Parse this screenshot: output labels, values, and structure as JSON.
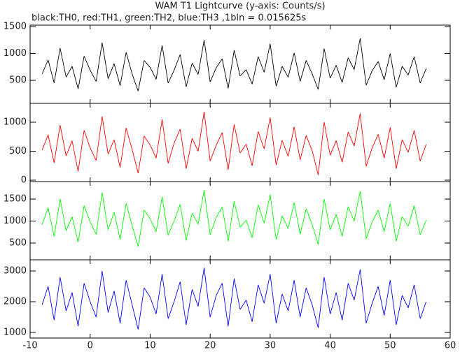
{
  "chart_data": [
    {
      "type": "line",
      "title": "WAM T1 Lightcurve (y-axis: Counts/s)",
      "subtitle": "black:TH0, red:TH1, green:TH2, blue:TH3 ,1bin = 0.015625s",
      "color": "#000000",
      "xlim": [
        -10,
        60
      ],
      "ylim": [
        72,
        1526
      ],
      "yticks": [
        500,
        1000,
        1500
      ],
      "x": [
        -8,
        -7,
        -6,
        -5,
        -4,
        -3,
        -2,
        -1,
        0,
        1,
        2,
        3,
        4,
        5,
        6,
        7,
        8,
        9,
        10,
        11,
        12,
        13,
        14,
        15,
        16,
        17,
        18,
        19,
        20,
        21,
        22,
        23,
        24,
        25,
        26,
        27,
        28,
        29,
        30,
        31,
        32,
        33,
        34,
        35,
        36,
        37,
        38,
        39,
        40,
        41,
        42,
        43,
        44,
        45,
        46,
        47,
        48,
        49,
        50,
        51,
        52,
        53,
        54,
        55,
        56
      ],
      "values": [
        620,
        880,
        450,
        1100,
        560,
        760,
        340,
        950,
        690,
        480,
        1200,
        530,
        810,
        400,
        1020,
        620,
        300,
        870,
        740,
        520,
        1150,
        450,
        690,
        980,
        380,
        820,
        610,
        1250,
        470,
        730,
        900,
        350,
        1060,
        580,
        700,
        430,
        940,
        650,
        1180,
        390,
        760,
        560,
        1010,
        480,
        870,
        620,
        330,
        1090,
        540,
        780,
        460,
        920,
        700,
        1280,
        410,
        680,
        850,
        510,
        1000,
        370,
        760,
        600,
        940,
        450,
        720
      ]
    },
    {
      "type": "line",
      "color": "#ff0000",
      "xlim": [
        -10,
        60
      ],
      "ylim": [
        -24,
        1325
      ],
      "yticks": [
        0,
        500,
        1000
      ],
      "x": [
        -8,
        -7,
        -6,
        -5,
        -4,
        -3,
        -2,
        -1,
        0,
        1,
        2,
        3,
        4,
        5,
        6,
        7,
        8,
        9,
        10,
        11,
        12,
        13,
        14,
        15,
        16,
        17,
        18,
        19,
        20,
        21,
        22,
        23,
        24,
        25,
        26,
        27,
        28,
        29,
        30,
        31,
        32,
        33,
        34,
        35,
        36,
        37,
        38,
        39,
        40,
        41,
        42,
        43,
        44,
        45,
        46,
        47,
        48,
        49,
        50,
        51,
        52,
        53,
        54,
        55,
        56
      ],
      "values": [
        520,
        780,
        300,
        950,
        420,
        680,
        150,
        860,
        560,
        340,
        1100,
        450,
        700,
        220,
        900,
        530,
        120,
        760,
        610,
        380,
        1050,
        290,
        640,
        880,
        200,
        720,
        500,
        1180,
        330,
        600,
        820,
        180,
        960,
        470,
        620,
        250,
        840,
        540,
        1080,
        260,
        690,
        410,
        920,
        350,
        770,
        510,
        90,
        1000,
        430,
        680,
        310,
        830,
        590,
        1150,
        240,
        560,
        790,
        380,
        910,
        200,
        700,
        480,
        860,
        330,
        620
      ]
    },
    {
      "type": "line",
      "color": "#00ff00",
      "xlim": [
        -10,
        60
      ],
      "ylim": [
        119,
        1897
      ],
      "yticks": [
        500,
        1000,
        1500
      ],
      "x": [
        -8,
        -7,
        -6,
        -5,
        -4,
        -3,
        -2,
        -1,
        0,
        1,
        2,
        3,
        4,
        5,
        6,
        7,
        8,
        9,
        10,
        11,
        12,
        13,
        14,
        15,
        16,
        17,
        18,
        19,
        20,
        21,
        22,
        23,
        24,
        25,
        26,
        27,
        28,
        29,
        30,
        31,
        32,
        33,
        34,
        35,
        36,
        37,
        38,
        39,
        40,
        41,
        42,
        43,
        44,
        45,
        46,
        47,
        48,
        49,
        50,
        51,
        52,
        53,
        54,
        55,
        56
      ],
      "values": [
        920,
        1300,
        650,
        1500,
        780,
        1100,
        520,
        1350,
        980,
        700,
        1650,
        800,
        1200,
        580,
        1400,
        900,
        420,
        1250,
        1050,
        760,
        1550,
        680,
        1000,
        1380,
        560,
        1180,
        930,
        1700,
        690,
        1080,
        1320,
        540,
        1450,
        860,
        1020,
        620,
        1370,
        950,
        1600,
        580,
        1120,
        830,
        1420,
        700,
        1280,
        920,
        470,
        1500,
        800,
        1150,
        650,
        1330,
        1000,
        1680,
        600,
        980,
        1250,
        760,
        1400,
        540,
        1100,
        880,
        1350,
        690,
        1020
      ]
    },
    {
      "type": "line",
      "color": "#0000ff",
      "xlim": [
        -10,
        60
      ],
      "ylim": [
        818,
        3364
      ],
      "yticks": [
        1000,
        2000,
        3000
      ],
      "xticks": [
        -10,
        0,
        10,
        20,
        30,
        40,
        50,
        60
      ],
      "x": [
        -8,
        -7,
        -6,
        -5,
        -4,
        -3,
        -2,
        -1,
        0,
        1,
        2,
        3,
        4,
        5,
        6,
        7,
        8,
        9,
        10,
        11,
        12,
        13,
        14,
        15,
        16,
        17,
        18,
        19,
        20,
        21,
        22,
        23,
        24,
        25,
        26,
        27,
        28,
        29,
        30,
        31,
        32,
        33,
        34,
        35,
        36,
        37,
        38,
        39,
        40,
        41,
        42,
        43,
        44,
        45,
        46,
        47,
        48,
        49,
        50,
        51,
        52,
        53,
        54,
        55,
        56
      ],
      "values": [
        1900,
        2500,
        1400,
        2800,
        1700,
        2300,
        1200,
        2600,
        2000,
        1500,
        3000,
        1650,
        2350,
        1300,
        2700,
        1900,
        1100,
        2450,
        2150,
        1600,
        2900,
        1450,
        2000,
        2650,
        1250,
        2400,
        1850,
        3100,
        1500,
        2200,
        2600,
        1200,
        2750,
        1750,
        2050,
        1350,
        2550,
        1950,
        2900,
        1300,
        2250,
        1700,
        2700,
        1500,
        2450,
        1900,
        1150,
        2800,
        1600,
        2300,
        1400,
        2600,
        2050,
        3050,
        1300,
        1950,
        2500,
        1550,
        2700,
        1250,
        2200,
        1800,
        2550,
        1450,
        2000
      ]
    }
  ]
}
